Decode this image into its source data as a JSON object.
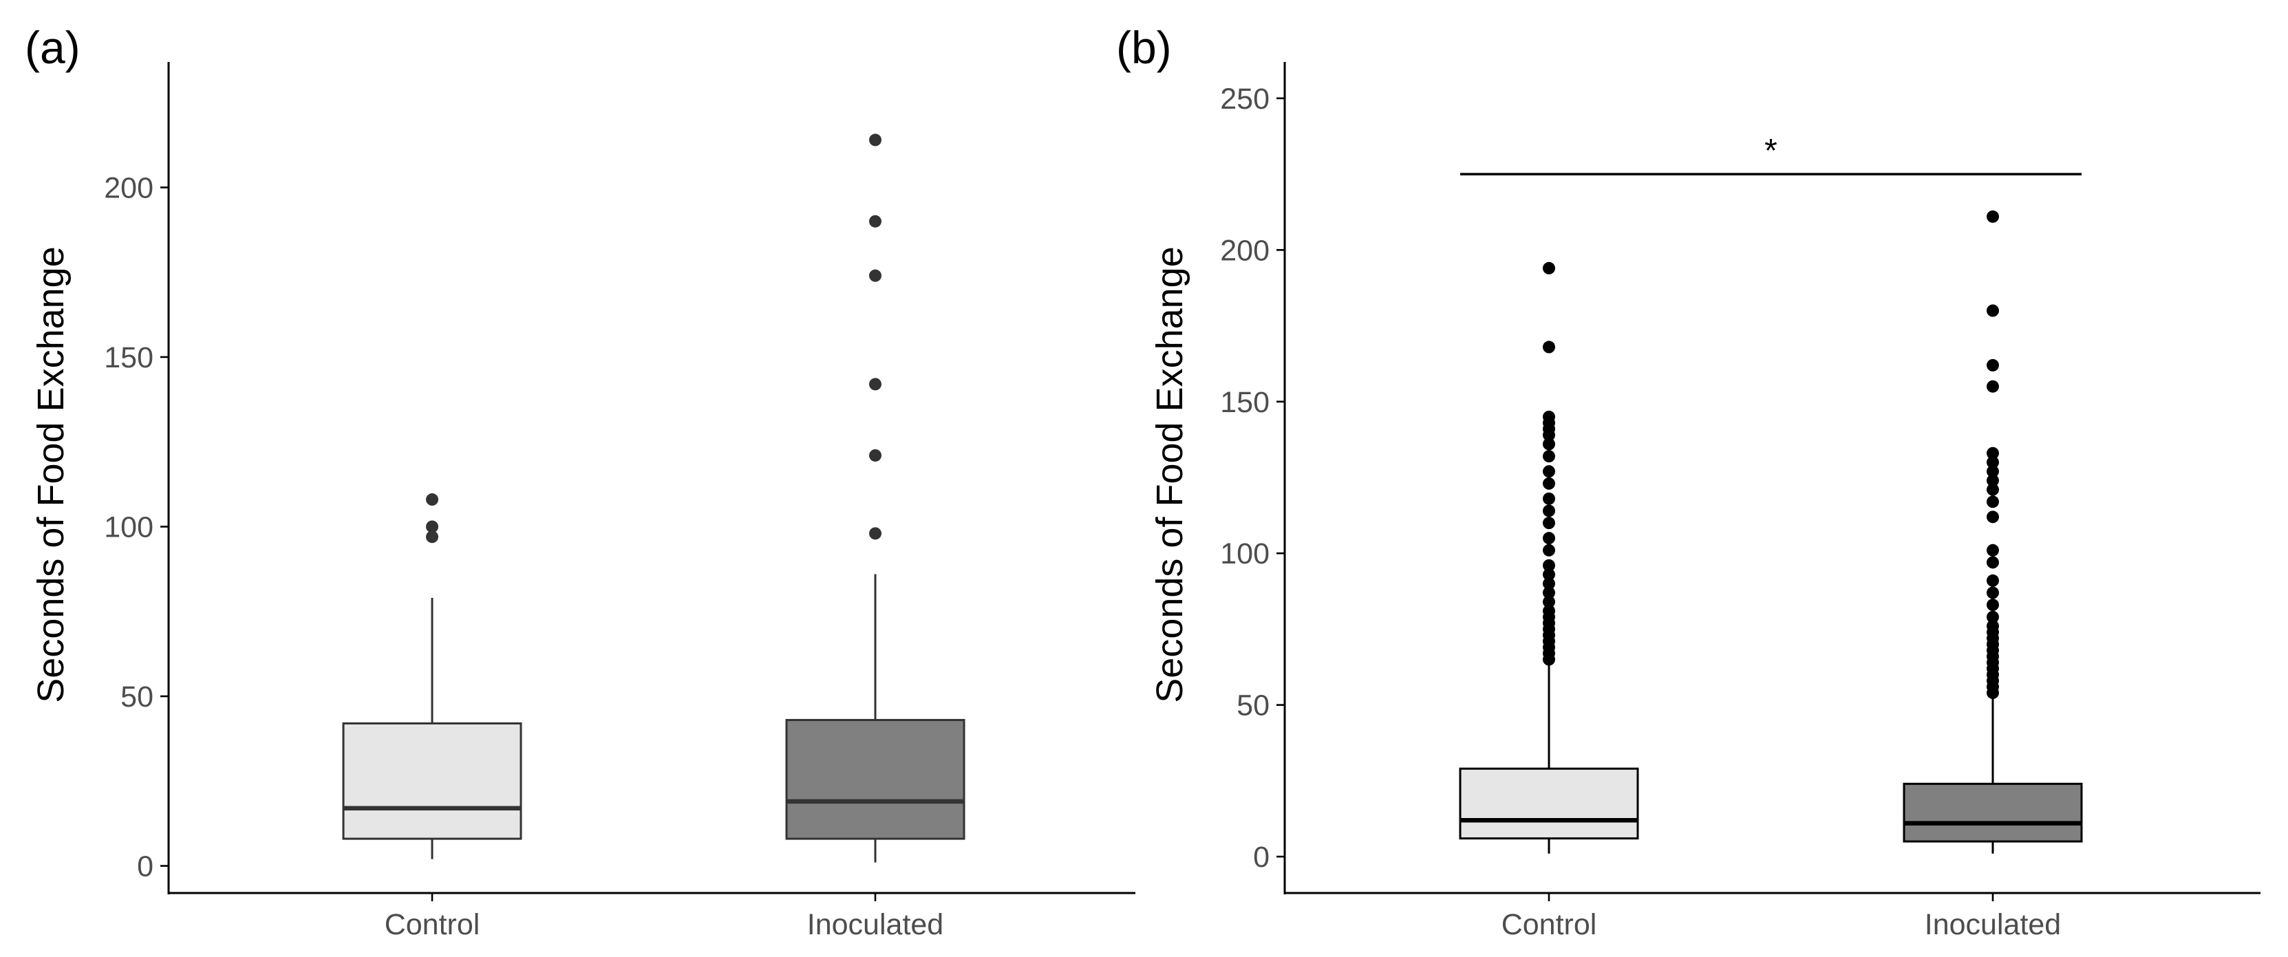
{
  "chart_data": [
    {
      "type": "box",
      "panel_label": "(a)",
      "ylabel": "Seconds of Food Exchange",
      "xlabel": "",
      "ylim": [
        -8,
        237
      ],
      "yticks": [
        0,
        50,
        100,
        150,
        200
      ],
      "categories": [
        "Control",
        "Inoculated"
      ],
      "point_color": "#333333",
      "boxes": [
        {
          "name": "Control",
          "fill": "#e6e6e6",
          "line_color": "#333333",
          "q1": 8,
          "median": 17,
          "q3": 42,
          "whisker_low": 2,
          "whisker_high": 79,
          "outliers": [
            97,
            100,
            108
          ]
        },
        {
          "name": "Inoculated",
          "fill": "#808080",
          "line_color": "#333333",
          "q1": 8,
          "median": 19,
          "q3": 43,
          "whisker_low": 1,
          "whisker_high": 86,
          "outliers": [
            98,
            121,
            142,
            174,
            190,
            214
          ]
        }
      ]
    },
    {
      "type": "box",
      "panel_label": "(b)",
      "ylabel": "Seconds of Food Exchange",
      "xlabel": "",
      "ylim": [
        -12,
        262
      ],
      "yticks": [
        0,
        50,
        100,
        150,
        200,
        250
      ],
      "categories": [
        "Control",
        "Inoculated"
      ],
      "point_color": "#000000",
      "boxes": [
        {
          "name": "Control",
          "fill": "#e6e6e6",
          "line_color": "#000000",
          "q1": 6,
          "median": 12,
          "q3": 29,
          "whisker_low": 1,
          "whisker_high": 63,
          "outliers": [
            65,
            67,
            69,
            71,
            73,
            75,
            77,
            79,
            81,
            84,
            87,
            90,
            93,
            96,
            101,
            105,
            110,
            114,
            118,
            123,
            127,
            132,
            136,
            139,
            141,
            143,
            145,
            168,
            194
          ]
        },
        {
          "name": "Inoculated",
          "fill": "#808080",
          "line_color": "#000000",
          "q1": 5,
          "median": 11,
          "q3": 24,
          "whisker_low": 1,
          "whisker_high": 53,
          "outliers": [
            54,
            56,
            58,
            60,
            62,
            64,
            66,
            68,
            70,
            72,
            74,
            76,
            79,
            83,
            87,
            91,
            97,
            101,
            112,
            117,
            121,
            124,
            127,
            130,
            133,
            155,
            162,
            180,
            211
          ]
        }
      ],
      "significance": {
        "label": "*",
        "y": 225
      }
    }
  ]
}
